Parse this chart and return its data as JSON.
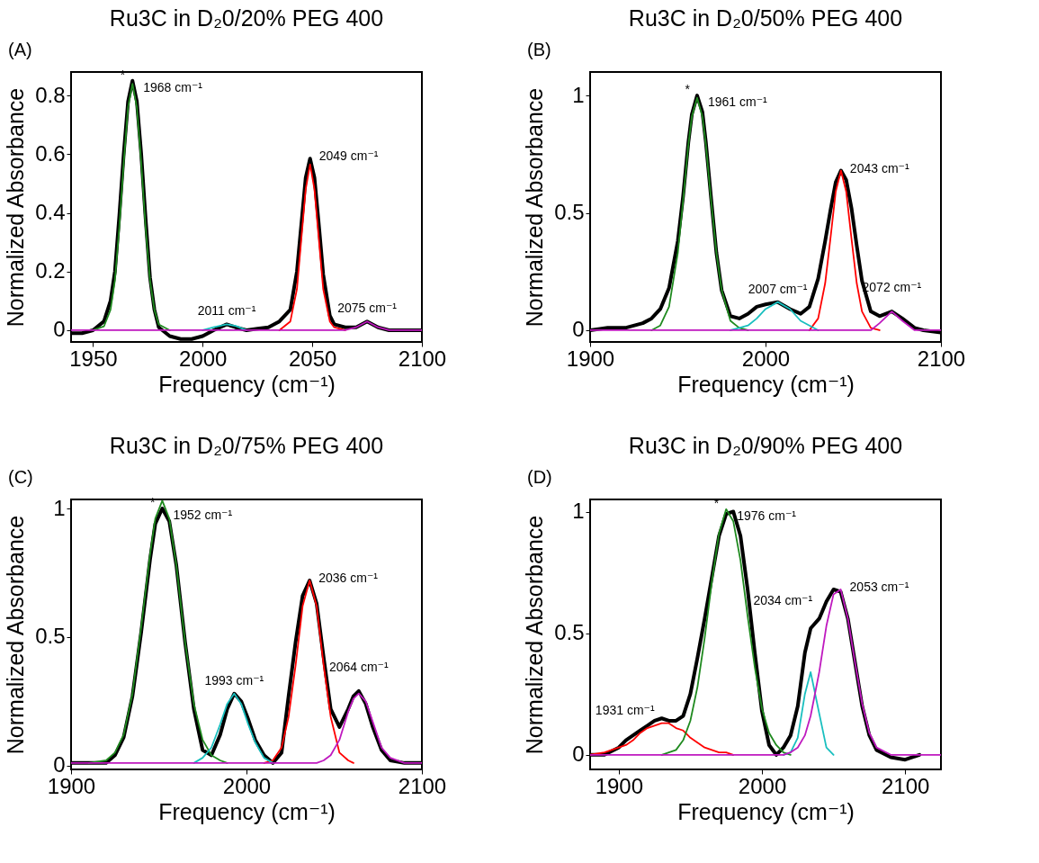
{
  "chart_data": [
    {
      "type": "line",
      "title": "Ru3C in D₂0/20% PEG 400",
      "xlabel": "Frequency (cm⁻¹)",
      "ylabel": "Normalized Absorbance",
      "xlim": [
        1940,
        2100
      ],
      "xticks": [
        1950,
        2000,
        2050,
        2100
      ],
      "ylim": [
        -0.04,
        0.88
      ],
      "yticks": [
        0,
        0.2,
        0.4,
        0.6,
        0.8
      ],
      "x": [
        1940,
        1945,
        1950,
        1955,
        1958,
        1960,
        1962,
        1964,
        1966,
        1968,
        1970,
        1972,
        1974,
        1976,
        1978,
        1980,
        1985,
        1990,
        1995,
        2000,
        2005,
        2011,
        2015,
        2020,
        2025,
        2030,
        2035,
        2040,
        2043,
        2045,
        2047,
        2049,
        2051,
        2053,
        2055,
        2058,
        2060,
        2065,
        2070,
        2075,
        2080,
        2085,
        2090,
        2100
      ],
      "series": [
        {
          "color": "#000000",
          "values": [
            -0.01,
            -0.01,
            0.0,
            0.03,
            0.1,
            0.2,
            0.39,
            0.6,
            0.78,
            0.85,
            0.78,
            0.6,
            0.38,
            0.18,
            0.07,
            0.01,
            -0.02,
            -0.03,
            -0.03,
            -0.02,
            0.0,
            0.02,
            0.01,
            0.0,
            0.005,
            0.01,
            0.03,
            0.07,
            0.2,
            0.36,
            0.52,
            0.585,
            0.52,
            0.36,
            0.19,
            0.05,
            0.02,
            0.01,
            0.01,
            0.03,
            0.01,
            0.0,
            0.0,
            0.0
          ]
        },
        {
          "color": "#1f8a1f",
          "values": [
            null,
            null,
            0,
            0.013,
            0.07,
            0.17,
            0.35,
            0.57,
            0.76,
            0.84,
            0.76,
            0.57,
            0.35,
            0.17,
            0.07,
            0.02,
            0,
            null,
            null,
            null,
            null,
            null,
            null,
            null,
            null,
            null,
            null,
            null,
            null,
            null,
            null,
            null,
            null,
            null,
            null,
            null,
            null,
            null,
            null,
            null,
            null,
            null,
            null,
            null
          ]
        },
        {
          "color": "#ff0000",
          "values": [
            null,
            null,
            null,
            null,
            null,
            null,
            null,
            null,
            null,
            null,
            null,
            null,
            null,
            null,
            null,
            null,
            null,
            null,
            null,
            null,
            null,
            null,
            null,
            null,
            null,
            null,
            0,
            0.03,
            0.14,
            0.31,
            0.48,
            0.565,
            0.48,
            0.31,
            0.14,
            0.03,
            0.01,
            0,
            null,
            null,
            null,
            null,
            null,
            null
          ]
        },
        {
          "color": "#19bfbf",
          "values": [
            null,
            null,
            null,
            null,
            null,
            null,
            null,
            null,
            null,
            null,
            null,
            null,
            null,
            null,
            null,
            null,
            null,
            null,
            null,
            0,
            0.01,
            0.02,
            0.015,
            0,
            null,
            null,
            null,
            null,
            null,
            null,
            null,
            null,
            null,
            null,
            null,
            null,
            null,
            null,
            null,
            null,
            null,
            null,
            null,
            null
          ]
        },
        {
          "color": "#bf19bf",
          "values": [
            0,
            0,
            0,
            0,
            0,
            0,
            0,
            0,
            0,
            0,
            0,
            0,
            0,
            0,
            0,
            0,
            0,
            0,
            0,
            0,
            0,
            0,
            0,
            0,
            0,
            0,
            0,
            0,
            0,
            0,
            0,
            0,
            0,
            0,
            0,
            0,
            0,
            0,
            0.01,
            0.03,
            0.01,
            0,
            0,
            0
          ]
        }
      ],
      "annotations": [
        "(A)",
        {
          "text": "*",
          "x": 1968,
          "y": 0.85
        },
        {
          "text": "1968 cm⁻¹",
          "x": 1968,
          "y": 0.85
        },
        {
          "text": "2049 cm⁻¹",
          "x": 2049,
          "y": 0.585
        },
        {
          "text": "2011 cm⁻¹",
          "x": 2011,
          "y": 0.02
        },
        {
          "text": "2075 cm⁻¹",
          "x": 2075,
          "y": 0.03
        }
      ]
    },
    {
      "type": "line",
      "title": "Ru3C in D₂0/50% PEG 400",
      "xlabel": "Frequency (cm⁻¹)",
      "ylabel": "Normalized Absorbance",
      "xlim": [
        1900,
        2100
      ],
      "xticks": [
        1900,
        2000,
        2100
      ],
      "ylim": [
        -0.05,
        1.1
      ],
      "yticks": [
        0,
        0.5,
        1
      ],
      "x": [
        1900,
        1910,
        1920,
        1930,
        1935,
        1940,
        1945,
        1950,
        1953,
        1956,
        1958,
        1961,
        1964,
        1966,
        1969,
        1972,
        1975,
        1980,
        1985,
        1990,
        1995,
        2000,
        2007,
        2014,
        2020,
        2025,
        2030,
        2034,
        2037,
        2040,
        2043,
        2046,
        2049,
        2052,
        2055,
        2060,
        2065,
        2072,
        2078,
        2085,
        2090,
        2100
      ],
      "series": [
        {
          "color": "#000000",
          "values": [
            0.0,
            0.01,
            0.01,
            0.03,
            0.05,
            0.09,
            0.18,
            0.38,
            0.57,
            0.8,
            0.92,
            1.0,
            0.93,
            0.8,
            0.56,
            0.33,
            0.17,
            0.06,
            0.05,
            0.07,
            0.1,
            0.11,
            0.12,
            0.09,
            0.07,
            0.1,
            0.22,
            0.38,
            0.51,
            0.63,
            0.68,
            0.64,
            0.52,
            0.36,
            0.21,
            0.08,
            0.06,
            0.08,
            0.05,
            0.01,
            0.0,
            -0.01
          ]
        },
        {
          "color": "#1f8a1f",
          "values": [
            null,
            null,
            null,
            null,
            0,
            0.02,
            0.1,
            0.33,
            0.55,
            0.79,
            0.91,
            0.99,
            0.91,
            0.79,
            0.55,
            0.33,
            0.17,
            0.04,
            0.01,
            0,
            null,
            null,
            null,
            null,
            null,
            null,
            null,
            null,
            null,
            null,
            null,
            null,
            null,
            null,
            null,
            null,
            null,
            null,
            null,
            null,
            null,
            null
          ]
        },
        {
          "color": "#ff0000",
          "values": [
            null,
            null,
            null,
            null,
            null,
            null,
            null,
            null,
            null,
            null,
            null,
            null,
            null,
            null,
            null,
            null,
            null,
            null,
            null,
            null,
            null,
            null,
            null,
            null,
            null,
            0,
            0.05,
            0.2,
            0.39,
            0.59,
            0.68,
            0.59,
            0.39,
            0.2,
            0.08,
            0.01,
            0,
            null,
            null,
            null,
            null,
            null
          ]
        },
        {
          "color": "#19bfbf",
          "values": [
            null,
            null,
            null,
            null,
            null,
            null,
            null,
            null,
            null,
            null,
            null,
            null,
            null,
            null,
            null,
            null,
            null,
            0,
            0.01,
            0.02,
            0.05,
            0.09,
            0.12,
            0.09,
            0.04,
            0.02,
            0,
            null,
            null,
            null,
            null,
            null,
            null,
            null,
            null,
            null,
            null,
            null,
            null,
            null,
            null,
            null
          ]
        },
        {
          "color": "#bf19bf",
          "values": [
            0,
            0,
            0,
            0,
            0,
            0,
            0,
            0,
            0,
            0,
            0,
            0,
            0,
            0,
            0,
            0,
            0,
            0,
            0,
            0,
            0,
            0,
            0,
            0,
            0,
            0,
            0,
            0,
            0,
            0,
            0,
            0,
            0,
            0,
            0,
            0,
            0.03,
            0.08,
            0.04,
            0,
            0,
            0
          ]
        }
      ],
      "annotations": [
        "(B)",
        {
          "text": "*",
          "x": 1961,
          "y": 1.0
        },
        {
          "text": "1961 cm⁻¹",
          "x": 1961,
          "y": 1.0
        },
        {
          "text": "2043 cm⁻¹",
          "x": 2043,
          "y": 0.68
        },
        {
          "text": "2007 cm⁻¹",
          "x": 2007,
          "y": 0.12
        },
        {
          "text": "2072 cm⁻¹",
          "x": 2072,
          "y": 0.08
        }
      ]
    },
    {
      "type": "line",
      "title": "Ru3C in D₂0/75% PEG 400",
      "xlabel": "Frequency (cm⁻¹)",
      "ylabel": "Normalized Absorbance",
      "xlim": [
        1900,
        2100
      ],
      "xticks": [
        1900,
        2000,
        2100
      ],
      "ylim": [
        -0.015,
        1.035
      ],
      "yticks": [
        0,
        0.5,
        1
      ],
      "x": [
        1900,
        1910,
        1920,
        1925,
        1930,
        1935,
        1940,
        1945,
        1948,
        1952,
        1956,
        1960,
        1965,
        1970,
        1975,
        1980,
        1985,
        1989,
        1993,
        1997,
        2001,
        2005,
        2010,
        2015,
        2020,
        2024,
        2028,
        2032,
        2036,
        2040,
        2044,
        2048,
        2053,
        2058,
        2061,
        2064,
        2068,
        2072,
        2077,
        2082,
        2090,
        2100
      ],
      "series": [
        {
          "color": "#000000",
          "values": [
            0.01,
            0.01,
            0.01,
            0.04,
            0.11,
            0.27,
            0.52,
            0.8,
            0.94,
            1.0,
            0.95,
            0.78,
            0.48,
            0.22,
            0.06,
            0.04,
            0.12,
            0.22,
            0.28,
            0.25,
            0.18,
            0.1,
            0.04,
            0.01,
            0.05,
            0.27,
            0.48,
            0.66,
            0.72,
            0.63,
            0.42,
            0.22,
            0.15,
            0.22,
            0.27,
            0.29,
            0.24,
            0.15,
            0.06,
            0.02,
            0.01,
            0.01
          ]
        },
        {
          "color": "#1f8a1f",
          "values": [
            null,
            0.01,
            0.02,
            0.05,
            0.12,
            0.28,
            0.54,
            0.82,
            0.96,
            1.03,
            0.96,
            0.78,
            0.48,
            0.24,
            0.1,
            0.04,
            0.02,
            0.01,
            null,
            null,
            null,
            null,
            null,
            null,
            null,
            null,
            null,
            null,
            null,
            null,
            null,
            null,
            null,
            null,
            null,
            null,
            null,
            null,
            null,
            null,
            null,
            null
          ]
        },
        {
          "color": "#ff0000",
          "values": [
            null,
            null,
            null,
            null,
            null,
            null,
            null,
            null,
            null,
            null,
            null,
            null,
            null,
            null,
            null,
            null,
            null,
            null,
            null,
            null,
            null,
            null,
            0.01,
            0.02,
            0.07,
            0.19,
            0.39,
            0.62,
            0.72,
            0.62,
            0.39,
            0.19,
            0.05,
            0.02,
            0.01,
            null,
            null,
            null,
            null,
            null,
            null,
            null
          ]
        },
        {
          "color": "#19bfbf",
          "values": [
            null,
            null,
            null,
            null,
            null,
            null,
            null,
            null,
            null,
            null,
            null,
            null,
            null,
            0.01,
            0.03,
            0.07,
            0.16,
            0.24,
            0.28,
            0.24,
            0.16,
            0.09,
            0.03,
            0.01,
            null,
            null,
            null,
            null,
            null,
            null,
            null,
            null,
            null,
            null,
            null,
            null,
            null,
            null,
            null,
            null,
            null,
            null
          ]
        },
        {
          "color": "#bf19bf",
          "values": [
            0.01,
            0.01,
            0.01,
            0.01,
            0.01,
            0.01,
            0.01,
            0.01,
            0.01,
            0.01,
            0.01,
            0.01,
            0.01,
            0.01,
            0.01,
            0.01,
            0.01,
            0.01,
            0.01,
            0.01,
            0.01,
            0.01,
            0.01,
            0.01,
            0.01,
            0.01,
            0.01,
            0.01,
            0.01,
            0.01,
            0.02,
            0.04,
            0.1,
            0.21,
            0.26,
            0.28,
            0.25,
            0.17,
            0.07,
            0.03,
            0.01,
            0.01
          ]
        }
      ],
      "annotations": [
        "(C)",
        {
          "text": "*",
          "x": 1952,
          "y": 1.0
        },
        {
          "text": "1952 cm⁻¹",
          "x": 1952,
          "y": 1.0
        },
        {
          "text": "2036 cm⁻¹",
          "x": 2036,
          "y": 0.72
        },
        {
          "text": "1993 cm⁻¹",
          "x": 1993,
          "y": 0.28
        },
        {
          "text": "2064 cm⁻¹",
          "x": 2064,
          "y": 0.29
        }
      ]
    },
    {
      "type": "line",
      "title": "Ru3C in D₂0/90% PEG 400",
      "xlabel": "Frequency (cm⁻¹)",
      "ylabel": "Normalized Absorbance",
      "xlim": [
        1880,
        2125
      ],
      "xticks": [
        1900,
        2000,
        2100
      ],
      "ylim": [
        -0.06,
        1.05
      ],
      "yticks": [
        0,
        0.5,
        1
      ],
      "x": [
        1880,
        1890,
        1900,
        1905,
        1910,
        1915,
        1920,
        1925,
        1930,
        1935,
        1940,
        1945,
        1950,
        1955,
        1960,
        1965,
        1970,
        1975,
        1980,
        1985,
        1990,
        1995,
        2000,
        2005,
        2010,
        2015,
        2020,
        2025,
        2030,
        2034,
        2040,
        2045,
        2050,
        2055,
        2060,
        2065,
        2070,
        2075,
        2080,
        2090,
        2100,
        2110,
        2125
      ],
      "series": [
        {
          "color": "#000000",
          "values": [
            0.0,
            0.0,
            0.03,
            0.06,
            0.08,
            0.1,
            0.12,
            0.14,
            0.15,
            0.14,
            0.14,
            0.16,
            0.25,
            0.4,
            0.56,
            0.73,
            0.9,
            0.99,
            1.0,
            0.9,
            0.68,
            0.42,
            0.18,
            0.04,
            0.0,
            0.03,
            0.08,
            0.2,
            0.42,
            0.52,
            0.56,
            0.63,
            0.68,
            0.67,
            0.56,
            0.38,
            0.2,
            0.08,
            0.02,
            -0.01,
            -0.02,
            0.0,
            null
          ]
        },
        {
          "color": "#ff0000",
          "values": [
            0,
            0.01,
            0.03,
            0.04,
            0.06,
            0.09,
            0.11,
            0.12,
            0.13,
            0.13,
            0.11,
            0.1,
            0.07,
            0.05,
            0.03,
            0.02,
            0.01,
            0.01,
            0,
            null,
            null,
            null,
            null,
            null,
            null,
            null,
            null,
            null,
            null,
            null,
            null,
            null,
            null,
            null,
            null,
            null,
            null,
            null,
            null,
            null,
            null,
            null,
            null
          ]
        },
        {
          "color": "#1f8a1f",
          "values": [
            null,
            null,
            null,
            null,
            null,
            null,
            null,
            null,
            0,
            0.01,
            0.02,
            0.06,
            0.14,
            0.28,
            0.48,
            0.71,
            0.91,
            1.01,
            0.96,
            0.8,
            0.57,
            0.36,
            0.19,
            0.09,
            0.04,
            0.01,
            0,
            null,
            null,
            null,
            null,
            null,
            null,
            null,
            null,
            null,
            null,
            null,
            null,
            null,
            null,
            null,
            null
          ]
        },
        {
          "color": "#19bfbf",
          "values": [
            null,
            null,
            null,
            null,
            null,
            null,
            null,
            null,
            null,
            null,
            null,
            null,
            null,
            null,
            null,
            null,
            null,
            null,
            null,
            null,
            null,
            null,
            null,
            null,
            null,
            0,
            0.01,
            0.07,
            0.25,
            0.34,
            0.17,
            0.03,
            0,
            null,
            null,
            null,
            null,
            null,
            null,
            null,
            null,
            null,
            null
          ]
        },
        {
          "color": "#bf19bf",
          "values": [
            0,
            0,
            0,
            0,
            0,
            0,
            0,
            0,
            0,
            0,
            0,
            0,
            0,
            0,
            0,
            0,
            0,
            0,
            0,
            0,
            0,
            0,
            0,
            0,
            0,
            0,
            0.01,
            0.03,
            0.08,
            0.16,
            0.34,
            0.53,
            0.66,
            0.68,
            0.56,
            0.38,
            0.21,
            0.09,
            0.03,
            0,
            0,
            0,
            0
          ]
        }
      ],
      "annotations": [
        "(D)",
        {
          "text": "*",
          "x": 1975,
          "y": 1.01
        },
        {
          "text": "1976 cm⁻¹",
          "x": 1975,
          "y": 1.01
        },
        {
          "text": "2034 cm⁻¹",
          "x": 2034,
          "y": 0.52
        },
        {
          "text": "2053 cm⁻¹",
          "x": 2055,
          "y": 0.68
        },
        {
          "text": "1931 cm⁻¹",
          "x": 1930,
          "y": 0.13
        }
      ]
    }
  ]
}
